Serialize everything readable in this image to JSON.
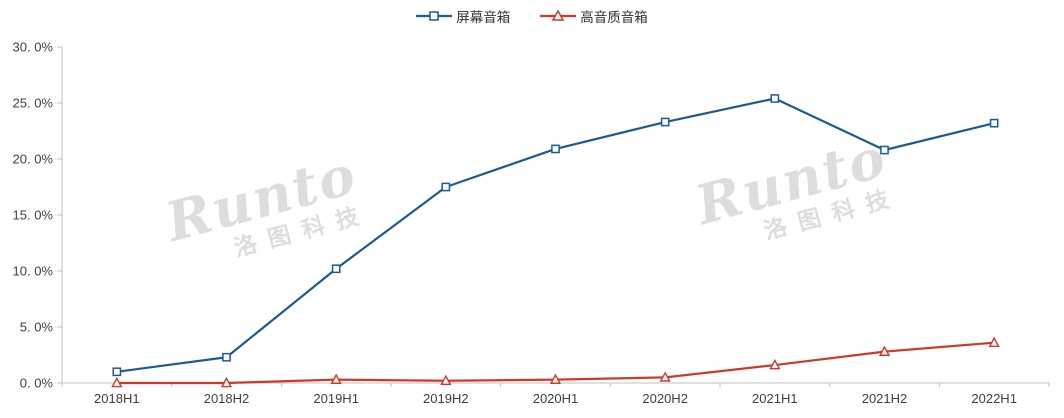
{
  "watermark": {
    "brand": "Runto",
    "cn": "洛图科技"
  },
  "legend": {
    "items": [
      {
        "label": "屏幕音箱",
        "marker": "square"
      },
      {
        "label": "高音质音箱",
        "marker": "triangle"
      }
    ]
  },
  "chart_data": {
    "type": "line",
    "title": "",
    "xlabel": "",
    "ylabel": "",
    "categories": [
      "2018H1",
      "2018H2",
      "2019H1",
      "2019H2",
      "2020H1",
      "2020H2",
      "2021H1",
      "2021H2",
      "2022H1"
    ],
    "series": [
      {
        "name": "屏幕音箱",
        "color": "#1a5b96",
        "marker": "square",
        "values": [
          1.0,
          2.3,
          10.2,
          17.5,
          20.9,
          23.3,
          25.4,
          20.8,
          23.2
        ]
      },
      {
        "name": "高音质音箱",
        "color": "#cd3a28",
        "marker": "triangle",
        "values": [
          0.0,
          0.0,
          0.3,
          0.2,
          0.3,
          0.5,
          1.6,
          2.8,
          3.6
        ]
      }
    ],
    "ylim": [
      0,
      30
    ],
    "ytick_step": 5,
    "ytick_labels": [
      "0. 0%",
      "5. 0%",
      "10. 0%",
      "15. 0%",
      "20. 0%",
      "25. 0%",
      "30. 0%"
    ],
    "grid": false,
    "legend_position": "top-center",
    "axis_color": "#c0c0c0",
    "label_color": "#3f3f3f"
  }
}
